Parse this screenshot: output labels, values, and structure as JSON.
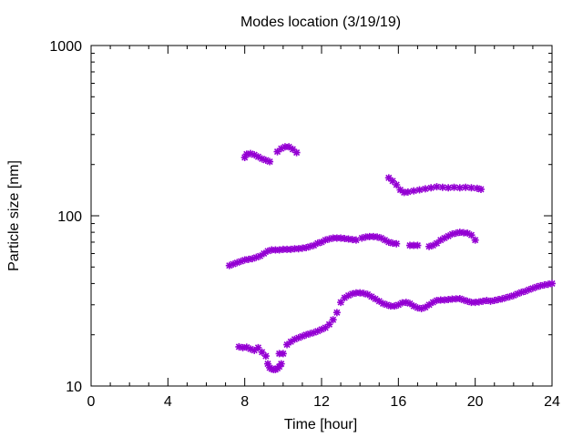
{
  "chart_data": {
    "type": "scatter",
    "title": "Modes location (3/19/19)",
    "xlabel": "Time [hour]",
    "ylabel": "Particle size [nm]",
    "xlim": [
      0,
      24
    ],
    "ylim": [
      10,
      1000
    ],
    "yscale": "log",
    "grid": false,
    "legend": "none",
    "marker_color": "#9400d3",
    "x_ticks": [
      0,
      4,
      8,
      12,
      16,
      20,
      24
    ],
    "x_tick_labels": [
      "0",
      "4",
      "8",
      "12",
      "16",
      "20",
      "24"
    ],
    "y_ticks": [
      10,
      100,
      1000
    ],
    "y_tick_labels": [
      "10",
      "100",
      "1000"
    ],
    "series": [
      {
        "points": [
          [
            8.0,
            220
          ],
          [
            8.1,
            230
          ],
          [
            8.3,
            232
          ],
          [
            8.5,
            228
          ],
          [
            8.7,
            222
          ],
          [
            8.9,
            216
          ],
          [
            9.1,
            212
          ],
          [
            9.3,
            208
          ]
        ]
      },
      {
        "points": [
          [
            9.7,
            238
          ],
          [
            9.9,
            248
          ],
          [
            10.1,
            254
          ],
          [
            10.3,
            254
          ],
          [
            10.5,
            246
          ],
          [
            10.7,
            235
          ]
        ]
      },
      {
        "points": [
          [
            15.5,
            167
          ],
          [
            15.7,
            160
          ],
          [
            15.9,
            152
          ],
          [
            16.1,
            142
          ],
          [
            16.3,
            137
          ],
          [
            16.5,
            138
          ],
          [
            16.8,
            140
          ],
          [
            17.1,
            142
          ],
          [
            17.4,
            144
          ],
          [
            17.7,
            146
          ],
          [
            18.0,
            148
          ],
          [
            18.3,
            147
          ],
          [
            18.6,
            146
          ],
          [
            18.9,
            147
          ],
          [
            19.2,
            146
          ],
          [
            19.5,
            147
          ],
          [
            19.8,
            146
          ],
          [
            20.1,
            145
          ],
          [
            20.3,
            143
          ]
        ]
      },
      {
        "points": [
          [
            7.2,
            51
          ],
          [
            7.4,
            52
          ],
          [
            7.6,
            53
          ],
          [
            7.8,
            54
          ],
          [
            8.0,
            55
          ],
          [
            8.2,
            55.5
          ],
          [
            8.4,
            56
          ],
          [
            8.6,
            57
          ],
          [
            8.8,
            58
          ],
          [
            9.0,
            60
          ],
          [
            9.2,
            62
          ],
          [
            9.4,
            63
          ],
          [
            9.6,
            63
          ],
          [
            9.8,
            63
          ],
          [
            10.0,
            63.5
          ],
          [
            10.2,
            63.5
          ],
          [
            10.4,
            63.5
          ],
          [
            10.6,
            64
          ],
          [
            10.8,
            64
          ],
          [
            11.0,
            64.5
          ],
          [
            11.2,
            65
          ],
          [
            11.4,
            66
          ],
          [
            11.6,
            67
          ],
          [
            11.8,
            69
          ],
          [
            12.0,
            70
          ],
          [
            12.2,
            72
          ],
          [
            12.4,
            73
          ],
          [
            12.6,
            74
          ],
          [
            12.8,
            74
          ],
          [
            13.0,
            74
          ],
          [
            13.2,
            73.5
          ],
          [
            13.4,
            73
          ],
          [
            13.6,
            72.5
          ],
          [
            13.8,
            72
          ],
          [
            14.1,
            74
          ],
          [
            14.3,
            75
          ],
          [
            14.5,
            75.5
          ],
          [
            14.7,
            75.5
          ],
          [
            14.9,
            75
          ],
          [
            15.1,
            74
          ],
          [
            15.3,
            72
          ],
          [
            15.5,
            70
          ],
          [
            15.7,
            69
          ],
          [
            15.9,
            68.5
          ],
          [
            16.6,
            67
          ],
          [
            16.8,
            67
          ],
          [
            17.0,
            67
          ],
          [
            17.6,
            66
          ],
          [
            17.8,
            67
          ],
          [
            18.0,
            69
          ],
          [
            18.2,
            72
          ],
          [
            18.4,
            74
          ],
          [
            18.6,
            76
          ],
          [
            18.8,
            78
          ],
          [
            19.0,
            79
          ],
          [
            19.2,
            80
          ],
          [
            19.4,
            79.5
          ],
          [
            19.6,
            79
          ],
          [
            19.8,
            77
          ],
          [
            20.0,
            72
          ]
        ]
      },
      {
        "points": [
          [
            7.7,
            17
          ],
          [
            7.9,
            16.8
          ],
          [
            8.1,
            16.9
          ],
          [
            8.3,
            16.5
          ],
          [
            8.5,
            16.2
          ],
          [
            8.7,
            16.8
          ],
          [
            8.9,
            15.8
          ],
          [
            9.1,
            15
          ],
          [
            9.2,
            13.5
          ],
          [
            9.3,
            12.8
          ],
          [
            9.4,
            12.6
          ],
          [
            9.5,
            12.5
          ],
          [
            9.6,
            12.5
          ],
          [
            9.7,
            12.7
          ],
          [
            9.8,
            13
          ],
          [
            9.9,
            13.5
          ],
          [
            9.8,
            15.5
          ],
          [
            10.0,
            15.5
          ],
          [
            10.2,
            17.5
          ],
          [
            10.4,
            18.2
          ],
          [
            10.6,
            18.8
          ],
          [
            10.8,
            19.2
          ],
          [
            11.0,
            19.6
          ],
          [
            11.2,
            20
          ],
          [
            11.4,
            20.3
          ],
          [
            11.6,
            20.6
          ],
          [
            11.8,
            21
          ],
          [
            12.0,
            21.5
          ],
          [
            12.2,
            22
          ],
          [
            12.4,
            23
          ],
          [
            12.6,
            24.5
          ],
          [
            12.8,
            27
          ],
          [
            13.0,
            31
          ],
          [
            13.2,
            33
          ],
          [
            13.4,
            34
          ],
          [
            13.6,
            34.8
          ],
          [
            13.8,
            35.2
          ],
          [
            14.0,
            35.3
          ],
          [
            14.2,
            35
          ],
          [
            14.4,
            34.5
          ],
          [
            14.6,
            33.5
          ],
          [
            14.8,
            32.5
          ],
          [
            15.0,
            31.5
          ],
          [
            15.2,
            30.5
          ],
          [
            15.4,
            30
          ],
          [
            15.6,
            29.5
          ],
          [
            15.8,
            29.5
          ],
          [
            16.0,
            30
          ],
          [
            16.2,
            30.8
          ],
          [
            16.4,
            31
          ],
          [
            16.6,
            30.5
          ],
          [
            16.8,
            29.5
          ],
          [
            17.0,
            28.8
          ],
          [
            17.2,
            28.5
          ],
          [
            17.4,
            29
          ],
          [
            17.6,
            30
          ],
          [
            17.8,
            31
          ],
          [
            18.0,
            31.8
          ],
          [
            18.2,
            32
          ],
          [
            18.4,
            32
          ],
          [
            18.6,
            32.2
          ],
          [
            18.8,
            32.4
          ],
          [
            19.0,
            32.5
          ],
          [
            19.2,
            32.6
          ],
          [
            19.4,
            32
          ],
          [
            19.6,
            31.5
          ],
          [
            19.8,
            31
          ],
          [
            20.0,
            31
          ],
          [
            20.2,
            31.2
          ],
          [
            20.4,
            31.5
          ],
          [
            20.6,
            31.8
          ],
          [
            20.8,
            31.5
          ],
          [
            21.0,
            31.8
          ],
          [
            21.2,
            32.2
          ],
          [
            21.4,
            32.5
          ],
          [
            21.6,
            33
          ],
          [
            21.8,
            33.5
          ],
          [
            22.0,
            34
          ],
          [
            22.2,
            34.8
          ],
          [
            22.4,
            35.5
          ],
          [
            22.6,
            36
          ],
          [
            22.8,
            36.8
          ],
          [
            23.0,
            37.5
          ],
          [
            23.2,
            38.2
          ],
          [
            23.4,
            38.8
          ],
          [
            23.6,
            39.2
          ],
          [
            23.8,
            39.6
          ],
          [
            24.0,
            40
          ]
        ]
      }
    ]
  }
}
